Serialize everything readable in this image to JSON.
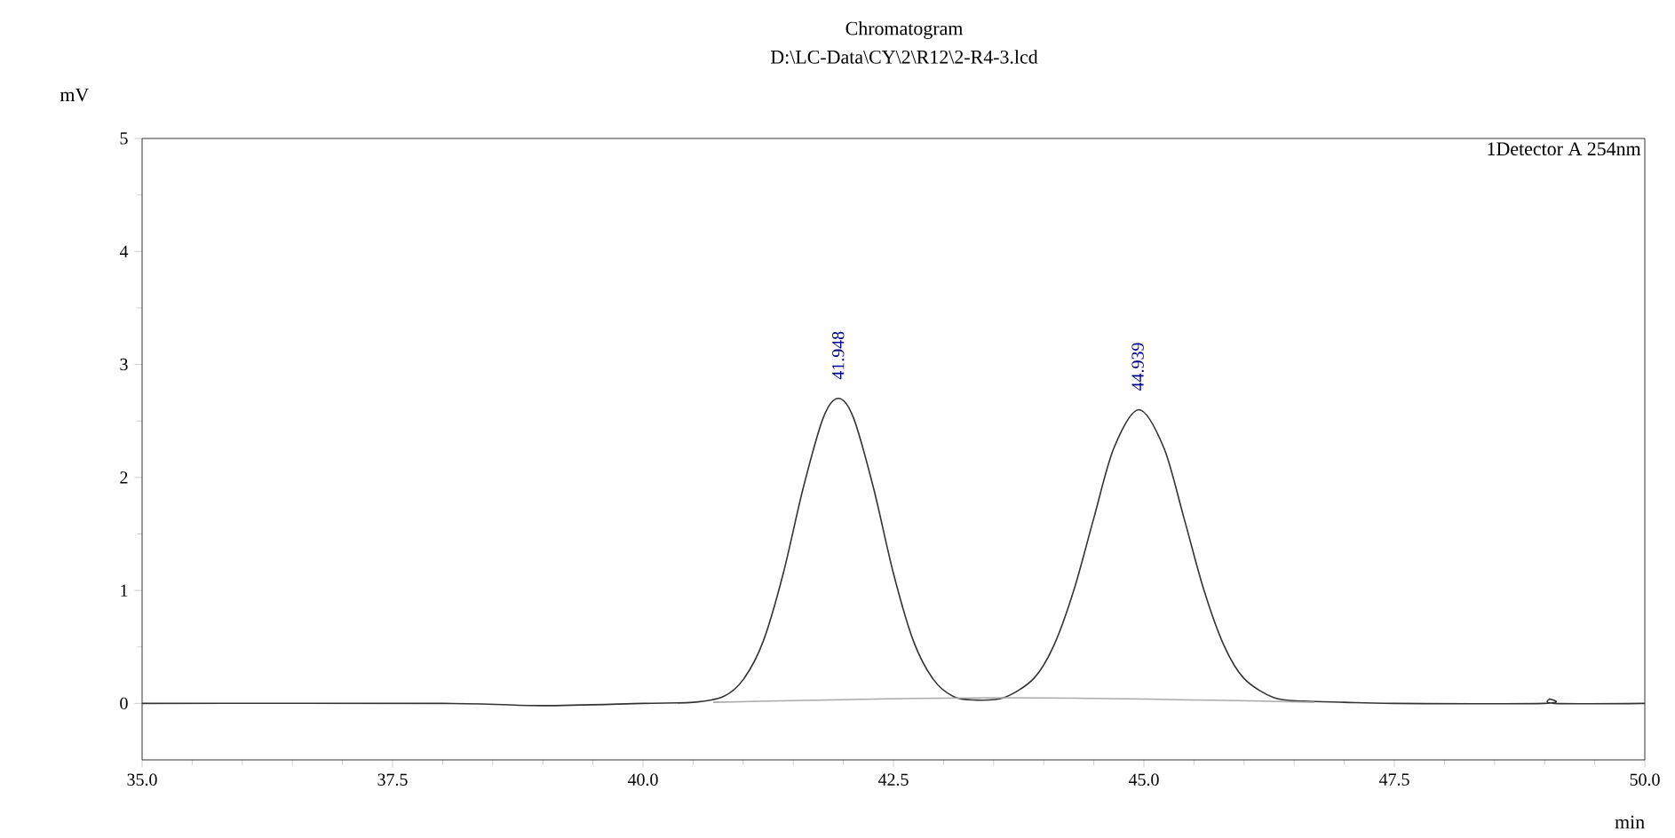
{
  "chart_data": {
    "type": "line",
    "title": "Chromatogram",
    "subtitle": "D:\\LC-Data\\CY\\2\\R12\\2-R4-3.lcd",
    "xlabel": "min",
    "ylabel": "mV",
    "xlim": [
      35,
      50
    ],
    "ylim": [
      -0.5,
      5
    ],
    "xticks": [
      {
        "value": 35,
        "label": "35.0"
      },
      {
        "value": 37.5,
        "label": "37.5"
      },
      {
        "value": 40,
        "label": "40.0"
      },
      {
        "value": 42.5,
        "label": "42.5"
      },
      {
        "value": 45,
        "label": "45.0"
      },
      {
        "value": 47.5,
        "label": "47.5"
      },
      {
        "value": 50,
        "label": "50.0"
      }
    ],
    "yticks": [
      0,
      1,
      2,
      3,
      4,
      5
    ],
    "grid": false,
    "marker": "none",
    "line_style": "solid",
    "series": [
      {
        "color": "#333333",
        "x": [
          35,
          38,
          39,
          40,
          40.5,
          40.8,
          41.0,
          41.2,
          41.4,
          41.6,
          41.8,
          41.95,
          42.1,
          42.3,
          42.5,
          42.7,
          42.9,
          43.1,
          43.3,
          43.6,
          43.9,
          44.1,
          44.3,
          44.5,
          44.7,
          44.95,
          45.2,
          45.4,
          45.6,
          45.8,
          46.0,
          46.3,
          46.6,
          47.0,
          47.5,
          49.0,
          49.05,
          49.1,
          50
        ],
        "values": [
          0,
          0,
          -0.02,
          0,
          0.01,
          0.06,
          0.21,
          0.55,
          1.15,
          1.91,
          2.53,
          2.7,
          2.53,
          1.91,
          1.15,
          0.55,
          0.21,
          0.06,
          0.03,
          0.05,
          0.22,
          0.51,
          1.0,
          1.64,
          2.26,
          2.6,
          2.26,
          1.64,
          1.0,
          0.51,
          0.22,
          0.05,
          0.02,
          0.01,
          0,
          0,
          0.04,
          0,
          0
        ]
      },
      {
        "color": "#aaaaaa",
        "x": [
          40.7,
          43.6,
          46.7
        ],
        "values": [
          0.01,
          0.05,
          0.01
        ]
      }
    ],
    "annotations": [
      {
        "text": "41.948",
        "x": 41.948,
        "y": 2.7
      },
      {
        "text": "44.939",
        "x": 44.939,
        "y": 2.6
      },
      "1Detector A 254nm"
    ]
  }
}
